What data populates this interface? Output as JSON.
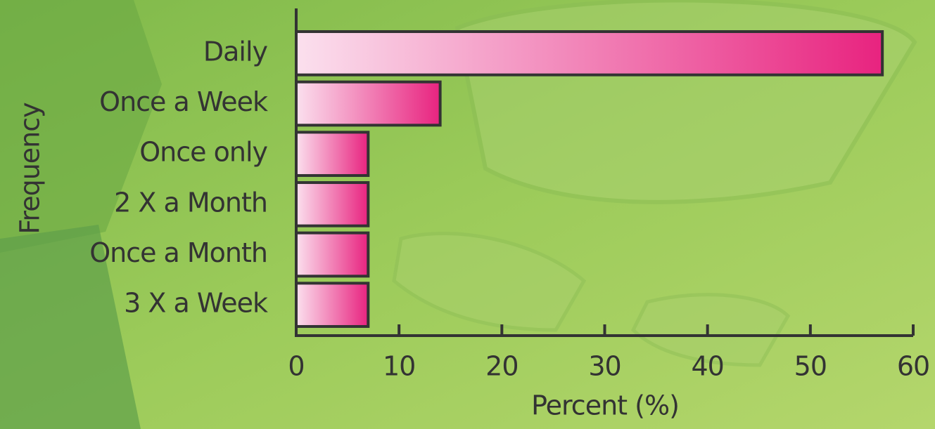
{
  "chart_data": {
    "type": "bar",
    "orientation": "horizontal",
    "categories": [
      "Daily",
      "Once a Week",
      "Once only",
      "2 X a Month",
      "Once a Month",
      "3 X a Week"
    ],
    "values": [
      57,
      14,
      7,
      7,
      7,
      7
    ],
    "color": "#e8237f",
    "xlim": [
      0,
      60
    ],
    "xticks": [
      0,
      10,
      20,
      30,
      40,
      50,
      60
    ],
    "x_label": "Percent (%)",
    "y_label": "Frequency"
  }
}
